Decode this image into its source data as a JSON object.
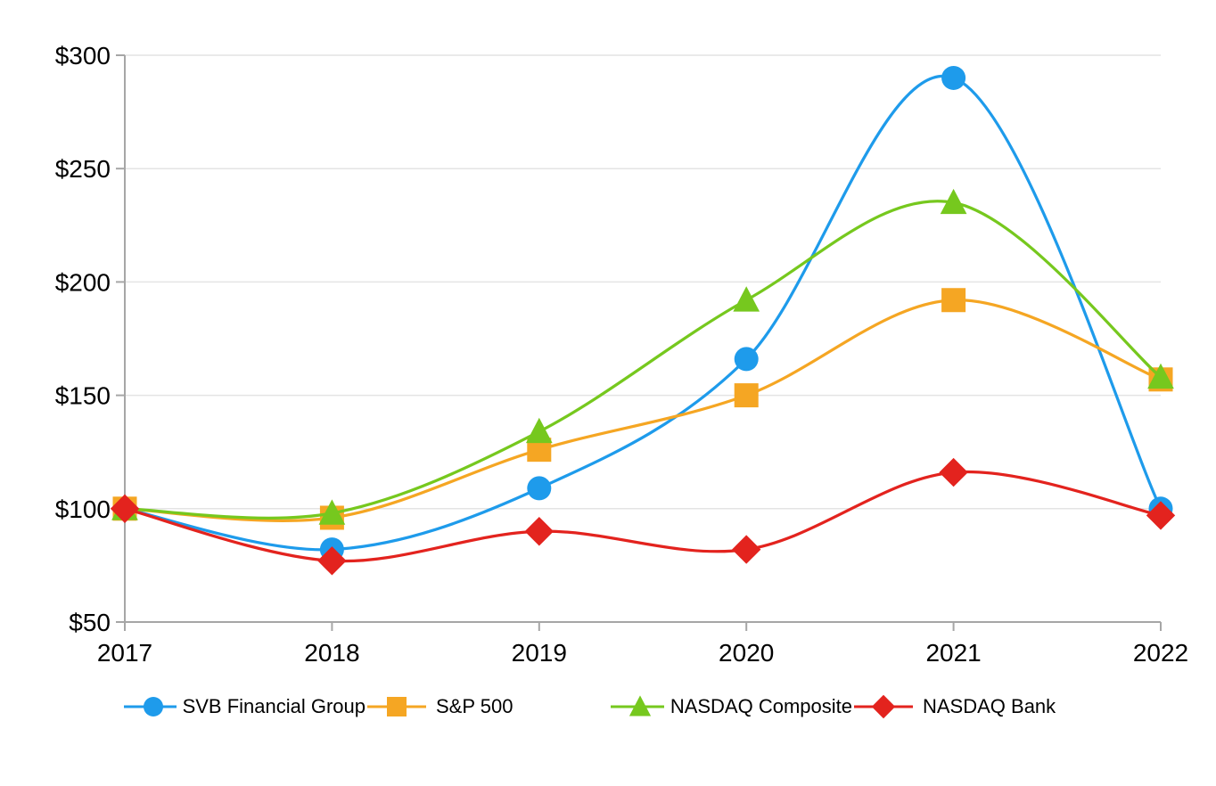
{
  "chart_data": {
    "type": "line",
    "title": "",
    "x_categories": [
      "2017",
      "2018",
      "2019",
      "2020",
      "2021",
      "2022"
    ],
    "y_tick_values": [
      50,
      100,
      150,
      200,
      250,
      300
    ],
    "y_tick_labels": [
      "$50",
      "$100",
      "$150",
      "$200",
      "$250",
      "$300"
    ],
    "ylim": [
      50,
      300
    ],
    "grid": "horizontal",
    "line_smooth": true,
    "legend_position": "bottom",
    "series": [
      {
        "name": "SVB Financial Group",
        "marker": "circle",
        "color": "#1E9BEB",
        "values": [
          100,
          82,
          109,
          166,
          290,
          100
        ]
      },
      {
        "name": "S&P 500",
        "marker": "square",
        "color": "#F5A623",
        "values": [
          100,
          96,
          126,
          150,
          192,
          157
        ]
      },
      {
        "name": "NASDAQ Composite",
        "marker": "triangle",
        "color": "#76C81E",
        "values": [
          100,
          98,
          134,
          192,
          235,
          158
        ]
      },
      {
        "name": "NASDAQ Bank",
        "marker": "diamond",
        "color": "#E3231E",
        "values": [
          100,
          77,
          90,
          82,
          116,
          97
        ]
      }
    ],
    "styles": {
      "axis_color": "#A6A6A6",
      "grid_color": "#E4E4E4",
      "text_color": "#000000",
      "background": "#FFFFFF"
    }
  }
}
